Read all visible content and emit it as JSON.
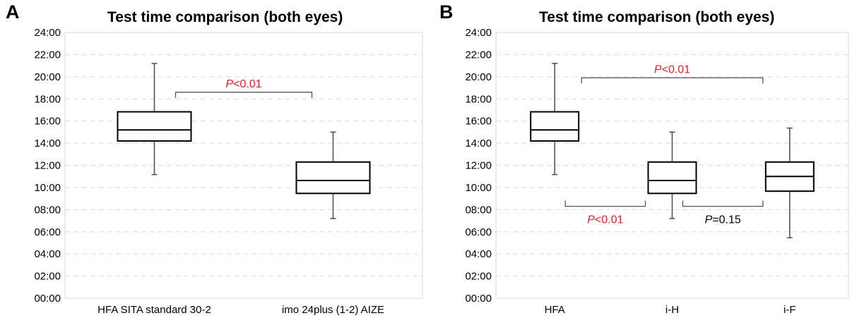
{
  "chart_data": [
    {
      "panel": "A",
      "type": "box",
      "title": "Test time comparison (both eyes)",
      "xlabel": "",
      "ylabel": "",
      "ylim": [
        "00:00",
        "24:00"
      ],
      "y_ticks": [
        "00:00",
        "02:00",
        "04:00",
        "06:00",
        "08:00",
        "10:00",
        "12:00",
        "14:00",
        "16:00",
        "18:00",
        "20:00",
        "22:00",
        "24:00"
      ],
      "grid": "horizontal dashed",
      "categories": [
        "HFA SITA standard 30-2",
        "imo 24plus (1-2) AIZE"
      ],
      "boxes": [
        {
          "category": "HFA SITA standard 30-2",
          "min": "11:10",
          "q1": "14:12",
          "median": "15:12",
          "q3": "16:50",
          "max": "21:12"
        },
        {
          "category": "imo 24plus (1-2) AIZE",
          "min": "07:12",
          "q1": "09:28",
          "median": "10:38",
          "q3": "12:18",
          "max": "15:00"
        }
      ],
      "annotations": [
        {
          "between": [
            "HFA SITA standard 30-2",
            "imo 24plus (1-2) AIZE"
          ],
          "p_label": "P",
          "text": "<0.01",
          "color": "#e8212d",
          "bracket_y": "18:36"
        }
      ]
    },
    {
      "panel": "B",
      "type": "box",
      "title": "Test time comparison (both eyes)",
      "xlabel": "",
      "ylabel": "",
      "ylim": [
        "00:00",
        "24:00"
      ],
      "y_ticks": [
        "00:00",
        "02:00",
        "04:00",
        "06:00",
        "08:00",
        "10:00",
        "12:00",
        "14:00",
        "16:00",
        "18:00",
        "20:00",
        "22:00",
        "24:00"
      ],
      "grid": "horizontal dashed",
      "categories": [
        "HFA",
        "i-H",
        "i-F"
      ],
      "boxes": [
        {
          "category": "HFA",
          "min": "11:10",
          "q1": "14:12",
          "median": "15:12",
          "q3": "16:50",
          "max": "21:12"
        },
        {
          "category": "i-H",
          "min": "07:12",
          "q1": "09:28",
          "median": "10:38",
          "q3": "12:18",
          "max": "15:00"
        },
        {
          "category": "i-F",
          "min": "05:28",
          "q1": "09:40",
          "median": "11:00",
          "q3": "12:18",
          "max": "15:22"
        }
      ],
      "annotations": [
        {
          "between": [
            "HFA",
            "i-F"
          ],
          "p_label": "P",
          "text": "<0.01",
          "color": "#e8212d",
          "bracket_y": "19:54",
          "opens": "down"
        },
        {
          "between": [
            "HFA",
            "i-H"
          ],
          "p_label": "P",
          "text": "<0.01",
          "color": "#e8212d",
          "bracket_y": "08:18",
          "opens": "up"
        },
        {
          "between": [
            "i-H",
            "i-F"
          ],
          "p_label": "P",
          "text": "=0.15",
          "color": "#000000",
          "bracket_y": "08:18",
          "opens": "up"
        }
      ]
    }
  ],
  "colors": {
    "box_stroke": "#000000",
    "whisker": "#555555",
    "grid": "#d9d9d9",
    "significant": "#e8212d",
    "bracket": "#555555"
  }
}
